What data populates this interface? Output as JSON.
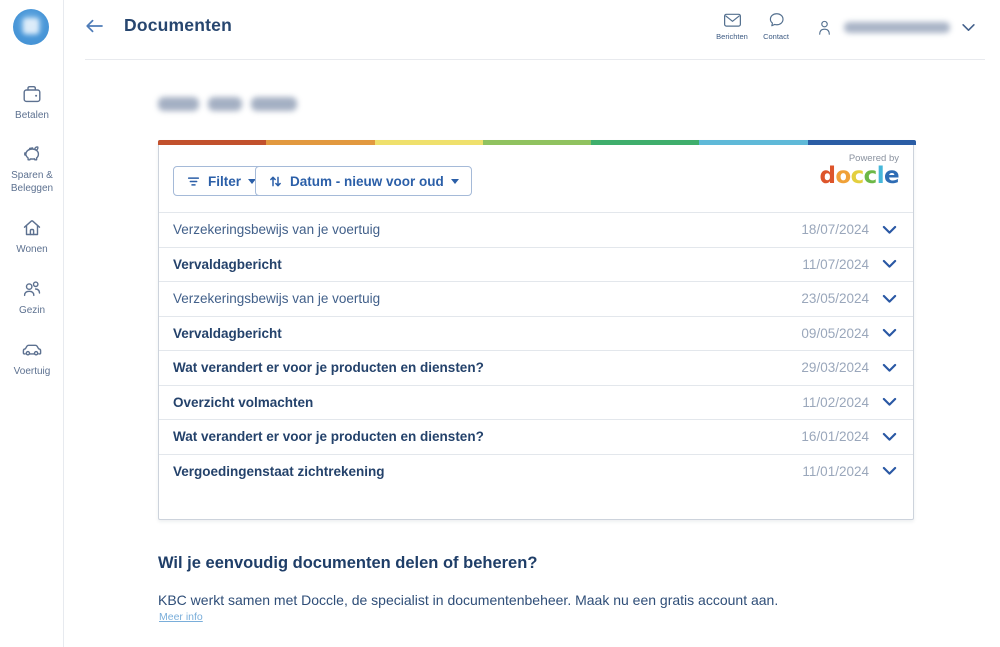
{
  "sidebar": {
    "items": [
      {
        "label": "Betalen",
        "icon": "wallet-icon"
      },
      {
        "label": "Sparen & Beleggen",
        "icon": "piggy-bank-icon"
      },
      {
        "label": "Wonen",
        "icon": "house-icon"
      },
      {
        "label": "Gezin",
        "icon": "family-icon"
      },
      {
        "label": "Voertuig",
        "icon": "car-icon"
      }
    ]
  },
  "header": {
    "title": "Documenten",
    "messages_label": "Berichten",
    "contact_label": "Contact",
    "user_name_redacted": true
  },
  "toolbar": {
    "filter_label": "Filter",
    "sort_label": "Datum - nieuw voor oud",
    "powered_by_label": "Powered by"
  },
  "doccle": {
    "letters": [
      {
        "char": "d",
        "color": "#dd552b"
      },
      {
        "char": "o",
        "color": "#f0a138"
      },
      {
        "char": "c",
        "color": "#e3cf3e"
      },
      {
        "char": "c",
        "color": "#6cb847"
      },
      {
        "char": "l",
        "color": "#46b7da"
      },
      {
        "char": "e",
        "color": "#2e6cb4"
      }
    ]
  },
  "rainbow_colors": [
    "#c2512d",
    "#e2993f",
    "#efe06c",
    "#90c25f",
    "#3fae6c",
    "#5fb9d8",
    "#2b5da5"
  ],
  "documents": [
    {
      "title": "Verzekeringsbewijs van je voertuig",
      "date": "18/07/2024",
      "unread": false
    },
    {
      "title": "Vervaldagbericht",
      "date": "11/07/2024",
      "unread": true
    },
    {
      "title": "Verzekeringsbewijs van je voertuig",
      "date": "23/05/2024",
      "unread": false
    },
    {
      "title": "Vervaldagbericht",
      "date": "09/05/2024",
      "unread": true
    },
    {
      "title": "Wat verandert er voor je producten en diensten?",
      "date": "29/03/2024",
      "unread": true
    },
    {
      "title": "Overzicht volmachten",
      "date": "11/02/2024",
      "unread": true
    },
    {
      "title": "Wat verandert er voor je producten en diensten?",
      "date": "16/01/2024",
      "unread": true
    },
    {
      "title": "Vergoedingenstaat zichtrekening",
      "date": "11/01/2024",
      "unread": true
    }
  ],
  "footer": {
    "heading": "Wil je eenvoudig documenten delen of beheren?",
    "body": "KBC werkt samen met Doccle, de specialist in documentenbeheer. Maak nu een gratis account aan.",
    "link_label": "Meer info"
  },
  "colors": {
    "accent_blue": "#2b5fa8",
    "navy_text": "#24426b",
    "date_gray": "#9aa7bb"
  }
}
